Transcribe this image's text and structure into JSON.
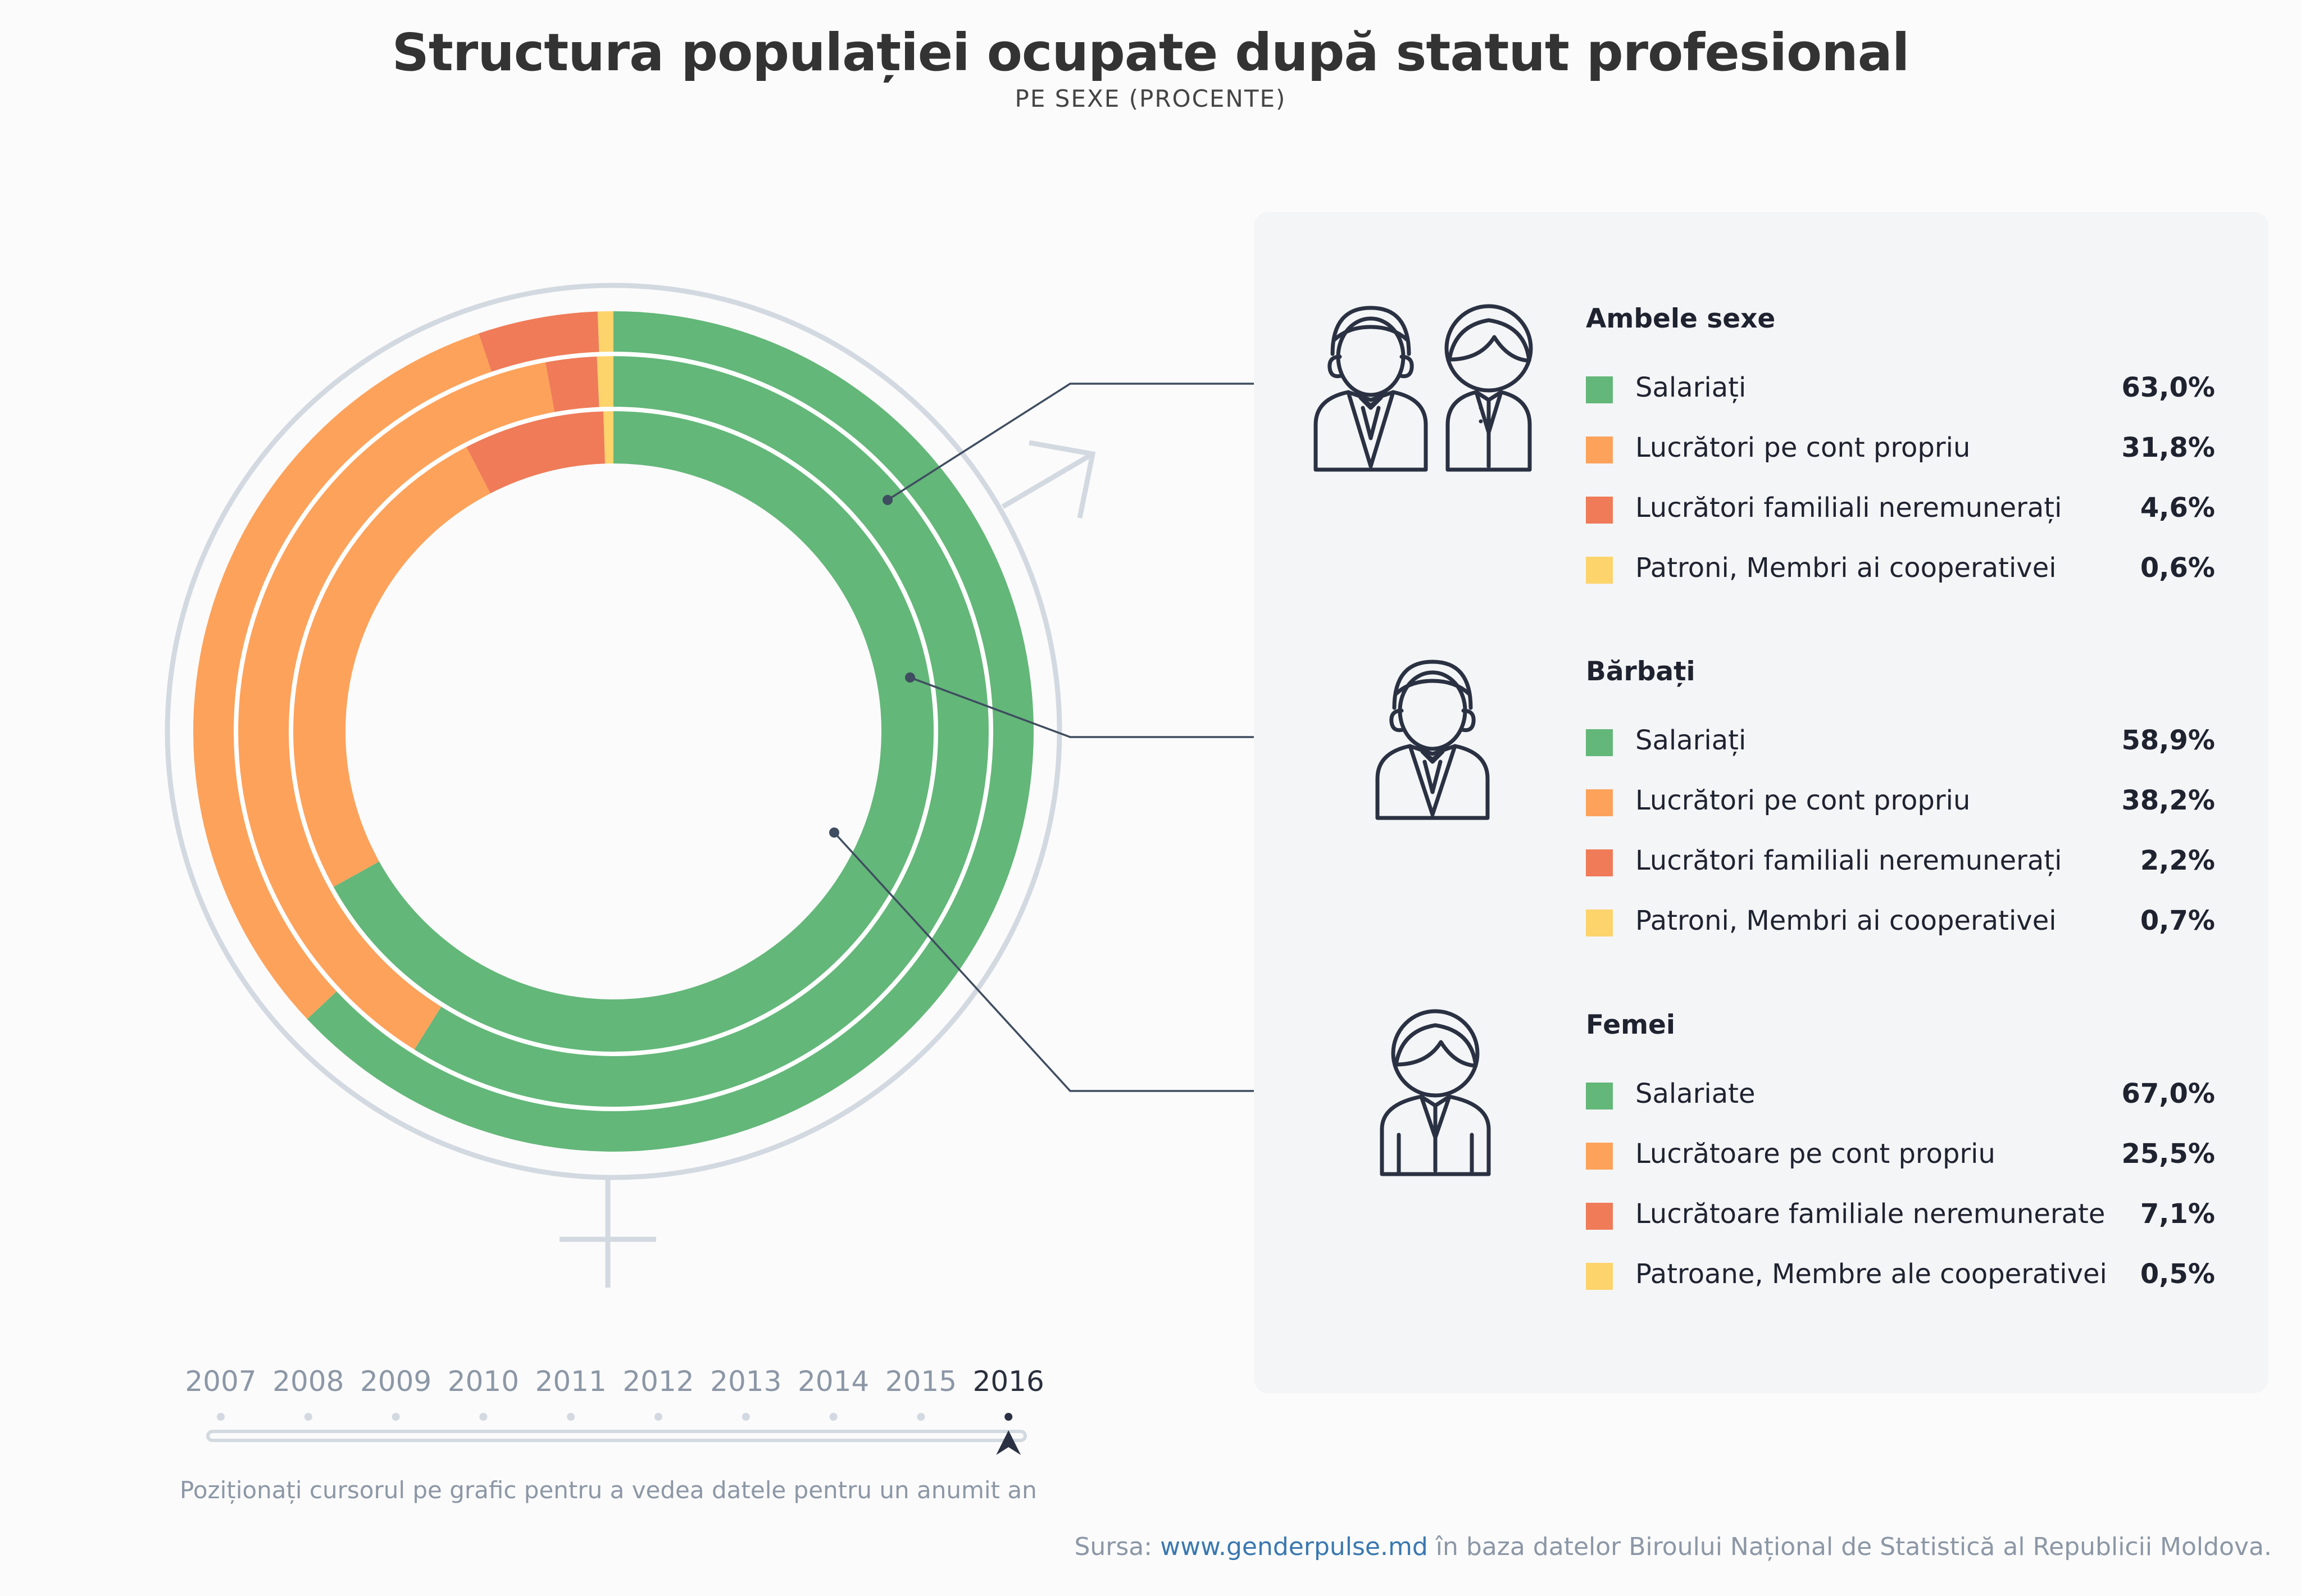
{
  "title": "Structura populației ocupate după statut profesional",
  "subtitle": "PE SEXE (PROCENTE)",
  "colors": {
    "salariati": "#63b779",
    "cont_propriu": "#fda25b",
    "familiali": "#ef7b58",
    "patroni": "#fdd36b",
    "symbol": "#d3d9e1",
    "leader": "#3f4d60"
  },
  "chart_data": {
    "type": "donut",
    "categories": [
      "Salariați",
      "Lucrători pe cont propriu",
      "Lucrători familiali neremunerați",
      "Patroni, Membri ai cooperativei"
    ],
    "series": [
      {
        "name": "Ambele sexe",
        "values": [
          63.0,
          31.8,
          4.6,
          0.6
        ]
      },
      {
        "name": "Bărbați",
        "values": [
          58.9,
          38.2,
          2.2,
          0.7
        ]
      },
      {
        "name": "Femei",
        "values": [
          67.0,
          25.5,
          7.1,
          0.5
        ]
      }
    ],
    "ring_order_outer_to_inner": [
      "Ambele sexe",
      "Bărbați",
      "Femei"
    ]
  },
  "legend": {
    "groups": [
      {
        "title": "Ambele sexe",
        "icon": "couple-icon",
        "items": [
          {
            "label": "Salariați",
            "value": "63,0%"
          },
          {
            "label": "Lucrători pe cont propriu",
            "value": "31,8%"
          },
          {
            "label": "Lucrători familiali neremunerați",
            "value": "4,6%"
          },
          {
            "label": "Patroni, Membri ai cooperativei",
            "value": "0,6%"
          }
        ]
      },
      {
        "title": "Bărbați",
        "icon": "man-icon",
        "items": [
          {
            "label": "Salariați",
            "value": "58,9%"
          },
          {
            "label": "Lucrători pe cont propriu",
            "value": "38,2%"
          },
          {
            "label": "Lucrători familiali neremunerați",
            "value": "2,2%"
          },
          {
            "label": "Patroni, Membri ai cooperativei",
            "value": "0,7%"
          }
        ]
      },
      {
        "title": "Femei",
        "icon": "woman-icon",
        "items": [
          {
            "label": "Salariate",
            "value": "67,0%"
          },
          {
            "label": "Lucrătoare pe cont propriu",
            "value": "25,5%"
          },
          {
            "label": "Lucrătoare familiale neremunerate",
            "value": "7,1%"
          },
          {
            "label": "Patroane, Membre ale cooperativei",
            "value": "0,5%"
          }
        ]
      }
    ]
  },
  "timeline": {
    "years": [
      "2007",
      "2008",
      "2009",
      "2010",
      "2011",
      "2012",
      "2013",
      "2014",
      "2015",
      "2016"
    ],
    "selected": "2016",
    "hint": "Poziționați cursorul pe grafic pentru a vedea datele pentru un anumit an"
  },
  "source": {
    "prefix": "Sursa: ",
    "link": "www.genderpulse.md",
    "suffix": " în baza datelor Biroului Național de Statistică al Republicii Moldova."
  }
}
